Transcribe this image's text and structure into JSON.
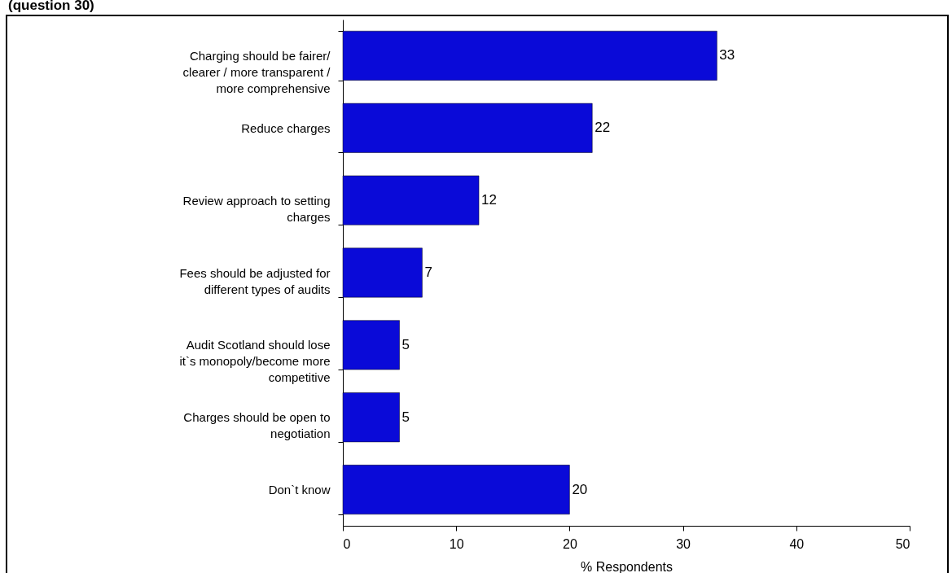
{
  "chart_data": {
    "type": "bar",
    "orientation": "horizontal",
    "title": "(question 30)",
    "xlabel": "% Respondents",
    "categories": [
      "Charging should be fairer/ clearer / more transparent / more comprehensive",
      "Reduce charges",
      "Review approach to setting charges",
      "Fees should be adjusted for different types of audits",
      "Audit Scotland should lose it`s monopoly/become more competitive",
      "Charges should be open to negotiation",
      "Don`t know"
    ],
    "values": [
      33,
      22,
      12,
      7,
      5,
      5,
      20
    ],
    "color": "#0a0ad8",
    "xlim": [
      0,
      50
    ],
    "xticks": [
      0,
      10,
      20,
      30,
      40,
      50
    ],
    "data_labels": true,
    "grid": false
  }
}
